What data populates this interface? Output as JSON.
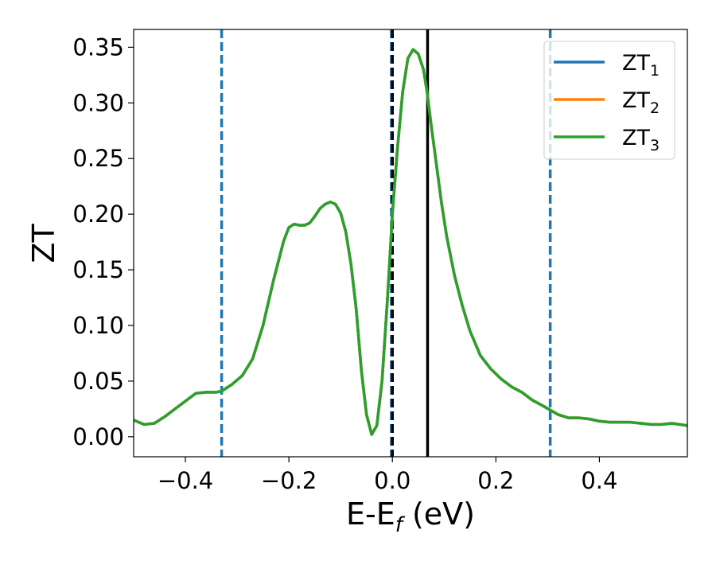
{
  "chart_data": {
    "type": "line",
    "title": "",
    "xlabel": "E-E",
    "xlabel_sub": "f",
    "xlabel_suffix": " (eV)",
    "ylabel": "ZT",
    "xlim": [
      -0.5,
      0.57
    ],
    "ylim": [
      -0.018,
      0.366
    ],
    "x_ticks": [
      -0.4,
      -0.2,
      0.0,
      0.2,
      0.4
    ],
    "x_tick_labels": [
      "−0.4",
      "−0.2",
      "0.0",
      "0.2",
      "0.4"
    ],
    "y_ticks": [
      0.0,
      0.05,
      0.1,
      0.15,
      0.2,
      0.25,
      0.3,
      0.35
    ],
    "y_tick_labels": [
      "0.00",
      "0.05",
      "0.10",
      "0.15",
      "0.20",
      "0.25",
      "0.30",
      "0.35"
    ],
    "grid": false,
    "legend_position": "top-right",
    "series": [
      {
        "name": "ZT",
        "sub": "1",
        "color": "#1f77b4",
        "x": [
          -0.5,
          -0.48,
          -0.46,
          -0.44,
          -0.42,
          -0.4,
          -0.38,
          -0.36,
          -0.34,
          -0.33,
          -0.31,
          -0.29,
          -0.27,
          -0.25,
          -0.23,
          -0.21,
          -0.2,
          -0.19,
          -0.18,
          -0.17,
          -0.16,
          -0.15,
          -0.14,
          -0.13,
          -0.12,
          -0.11,
          -0.1,
          -0.09,
          -0.08,
          -0.07,
          -0.06,
          -0.05,
          -0.04,
          -0.03,
          -0.02,
          -0.01,
          -0.005,
          0.0,
          0.01,
          0.02,
          0.03,
          0.04,
          0.05,
          0.06,
          0.067,
          0.075,
          0.085,
          0.095,
          0.105,
          0.12,
          0.135,
          0.15,
          0.17,
          0.19,
          0.21,
          0.23,
          0.25,
          0.27,
          0.29,
          0.305,
          0.32,
          0.34,
          0.36,
          0.38,
          0.4,
          0.42,
          0.44,
          0.46,
          0.48,
          0.5,
          0.52,
          0.54,
          0.57
        ],
        "y": [
          0.015,
          0.011,
          0.012,
          0.018,
          0.025,
          0.032,
          0.039,
          0.04,
          0.04,
          0.041,
          0.047,
          0.055,
          0.07,
          0.1,
          0.14,
          0.176,
          0.188,
          0.191,
          0.19,
          0.19,
          0.192,
          0.198,
          0.205,
          0.209,
          0.211,
          0.209,
          0.201,
          0.184,
          0.155,
          0.115,
          0.06,
          0.02,
          0.002,
          0.01,
          0.05,
          0.12,
          0.16,
          0.2,
          0.26,
          0.31,
          0.34,
          0.348,
          0.344,
          0.33,
          0.31,
          0.28,
          0.245,
          0.21,
          0.18,
          0.145,
          0.118,
          0.095,
          0.073,
          0.061,
          0.052,
          0.045,
          0.04,
          0.033,
          0.028,
          0.024,
          0.02,
          0.017,
          0.017,
          0.016,
          0.014,
          0.013,
          0.013,
          0.013,
          0.012,
          0.011,
          0.011,
          0.012,
          0.01
        ]
      },
      {
        "name": "ZT",
        "sub": "2",
        "color": "#ff7f0e",
        "x": [
          -0.5,
          -0.48,
          -0.46,
          -0.44,
          -0.42,
          -0.4,
          -0.38,
          -0.36,
          -0.34,
          -0.33,
          -0.31,
          -0.29,
          -0.27,
          -0.25,
          -0.23,
          -0.21,
          -0.2,
          -0.19,
          -0.18,
          -0.17,
          -0.16,
          -0.15,
          -0.14,
          -0.13,
          -0.12,
          -0.11,
          -0.1,
          -0.09,
          -0.08,
          -0.07,
          -0.06,
          -0.05,
          -0.04,
          -0.03,
          -0.02,
          -0.01,
          -0.005,
          0.0,
          0.01,
          0.02,
          0.03,
          0.04,
          0.05,
          0.06,
          0.067,
          0.075,
          0.085,
          0.095,
          0.105,
          0.12,
          0.135,
          0.15,
          0.17,
          0.19,
          0.21,
          0.23,
          0.25,
          0.27,
          0.29,
          0.305,
          0.32,
          0.34,
          0.36,
          0.38,
          0.4,
          0.42,
          0.44,
          0.46,
          0.48,
          0.5,
          0.52,
          0.54,
          0.57
        ],
        "y": [
          0.015,
          0.011,
          0.012,
          0.018,
          0.025,
          0.032,
          0.039,
          0.04,
          0.04,
          0.041,
          0.047,
          0.055,
          0.07,
          0.1,
          0.14,
          0.176,
          0.188,
          0.191,
          0.19,
          0.19,
          0.192,
          0.198,
          0.205,
          0.209,
          0.211,
          0.209,
          0.201,
          0.184,
          0.155,
          0.115,
          0.06,
          0.02,
          0.002,
          0.01,
          0.05,
          0.12,
          0.16,
          0.2,
          0.26,
          0.31,
          0.34,
          0.348,
          0.344,
          0.33,
          0.31,
          0.28,
          0.245,
          0.21,
          0.18,
          0.145,
          0.118,
          0.095,
          0.073,
          0.061,
          0.052,
          0.045,
          0.04,
          0.033,
          0.028,
          0.024,
          0.02,
          0.017,
          0.017,
          0.016,
          0.014,
          0.013,
          0.013,
          0.013,
          0.012,
          0.011,
          0.011,
          0.012,
          0.01
        ]
      },
      {
        "name": "ZT",
        "sub": "3",
        "color": "#2ca02c",
        "x": [
          -0.5,
          -0.48,
          -0.46,
          -0.44,
          -0.42,
          -0.4,
          -0.38,
          -0.36,
          -0.34,
          -0.33,
          -0.31,
          -0.29,
          -0.27,
          -0.25,
          -0.23,
          -0.21,
          -0.2,
          -0.19,
          -0.18,
          -0.17,
          -0.16,
          -0.15,
          -0.14,
          -0.13,
          -0.12,
          -0.11,
          -0.1,
          -0.09,
          -0.08,
          -0.07,
          -0.06,
          -0.05,
          -0.04,
          -0.03,
          -0.02,
          -0.01,
          -0.005,
          0.0,
          0.01,
          0.02,
          0.03,
          0.04,
          0.05,
          0.06,
          0.067,
          0.075,
          0.085,
          0.095,
          0.105,
          0.12,
          0.135,
          0.15,
          0.17,
          0.19,
          0.21,
          0.23,
          0.25,
          0.27,
          0.29,
          0.305,
          0.32,
          0.34,
          0.36,
          0.38,
          0.4,
          0.42,
          0.44,
          0.46,
          0.48,
          0.5,
          0.52,
          0.54,
          0.57
        ],
        "y": [
          0.015,
          0.011,
          0.012,
          0.018,
          0.025,
          0.032,
          0.039,
          0.04,
          0.04,
          0.041,
          0.047,
          0.055,
          0.07,
          0.1,
          0.14,
          0.176,
          0.188,
          0.191,
          0.19,
          0.19,
          0.192,
          0.198,
          0.205,
          0.209,
          0.211,
          0.209,
          0.201,
          0.184,
          0.155,
          0.115,
          0.06,
          0.02,
          0.002,
          0.01,
          0.05,
          0.12,
          0.16,
          0.2,
          0.26,
          0.31,
          0.34,
          0.348,
          0.344,
          0.33,
          0.31,
          0.28,
          0.245,
          0.21,
          0.18,
          0.145,
          0.118,
          0.095,
          0.073,
          0.061,
          0.052,
          0.045,
          0.04,
          0.033,
          0.028,
          0.024,
          0.02,
          0.017,
          0.017,
          0.016,
          0.014,
          0.013,
          0.013,
          0.013,
          0.012,
          0.011,
          0.011,
          0.012,
          0.01
        ]
      }
    ],
    "vlines": [
      {
        "x": -0.33,
        "style": "dashed",
        "color": "#1f77b4"
      },
      {
        "x": -0.002,
        "style": "dashed",
        "color": "#1f77b4"
      },
      {
        "x": 0.305,
        "style": "dashed",
        "color": "#1f77b4"
      },
      {
        "x": 0.0,
        "style": "dashed",
        "color": "#000000"
      },
      {
        "x": 0.068,
        "style": "solid",
        "color": "#000000"
      }
    ]
  }
}
